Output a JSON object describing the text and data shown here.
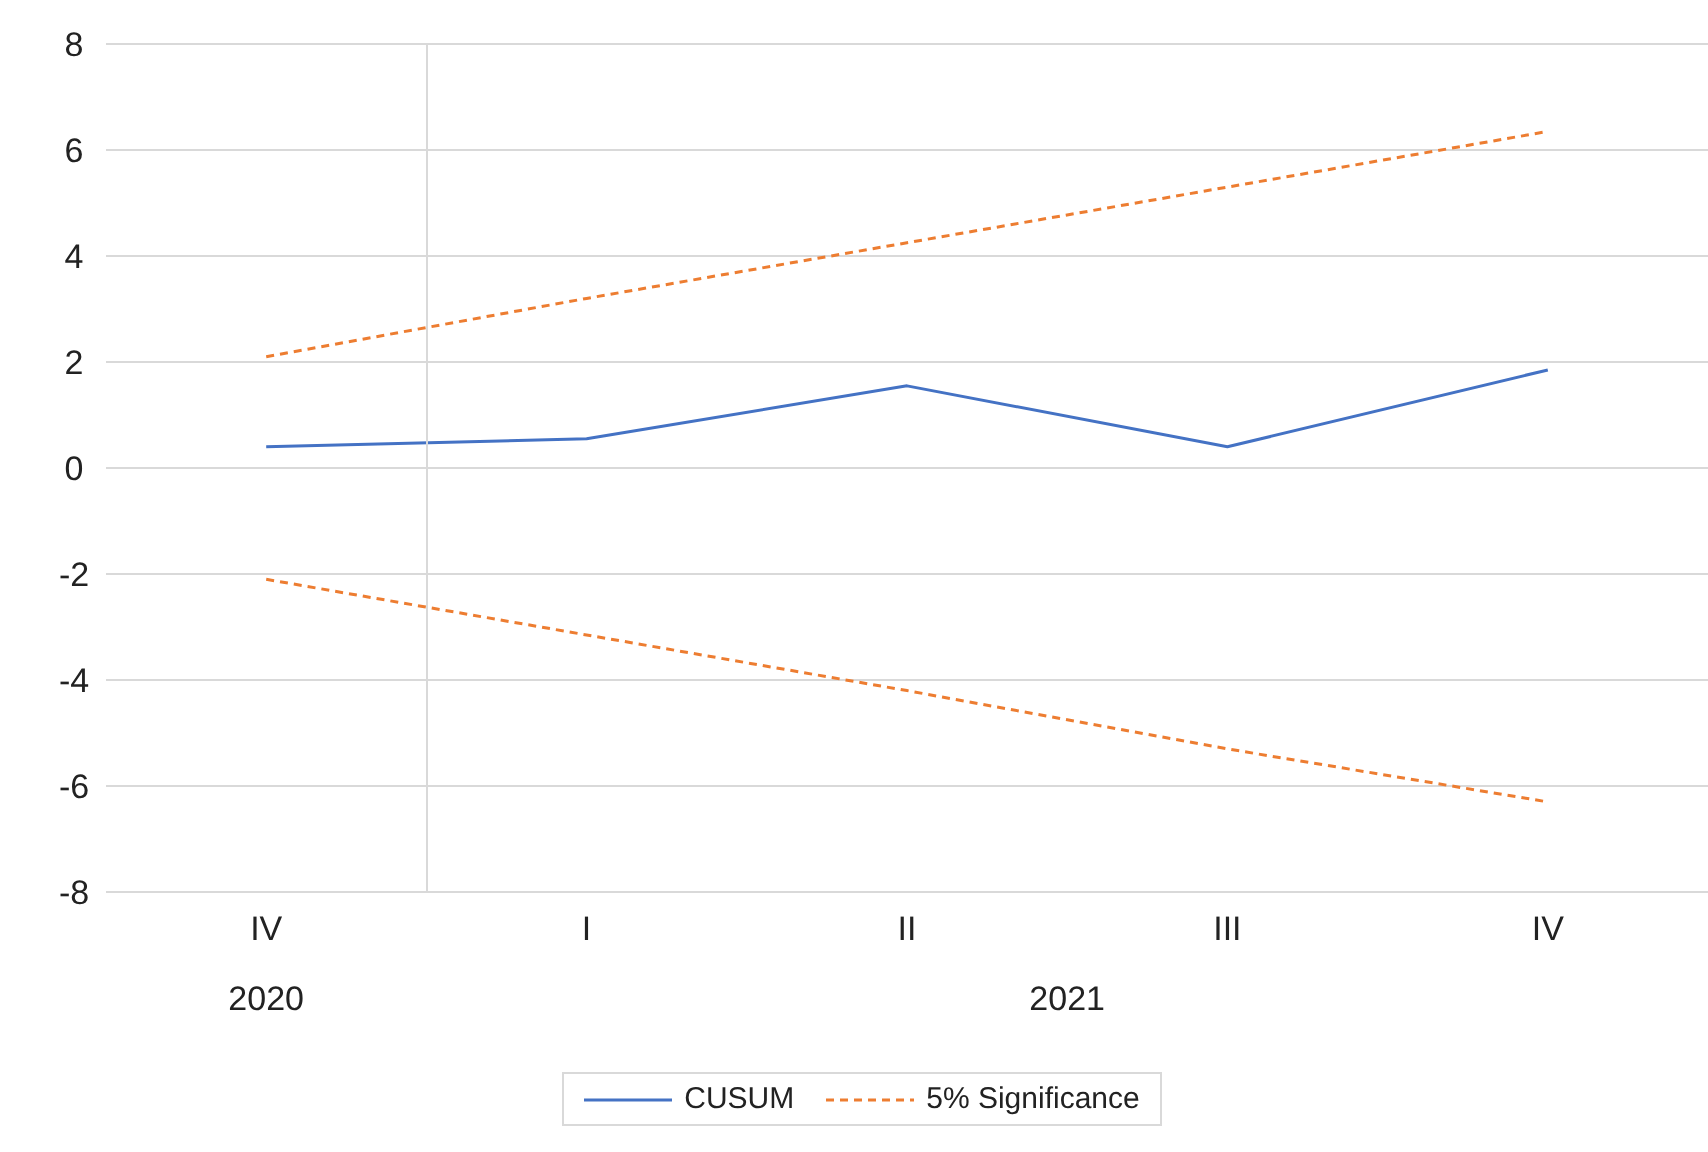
{
  "chart_data": {
    "type": "line",
    "categories": [
      "IV",
      "I",
      "II",
      "III",
      "IV"
    ],
    "series": [
      {
        "name": "CUSUM",
        "color": "#4472c4",
        "values": [
          0.4,
          0.55,
          1.55,
          0.4,
          1.85
        ],
        "line_style": "solid"
      },
      {
        "name": "5% Significance",
        "color": "#ed7d31",
        "values": [
          2.1,
          3.2,
          4.25,
          5.3,
          6.35
        ],
        "line_style": "dashed"
      },
      {
        "color": "#ed7d31",
        "values": [
          -2.1,
          -3.15,
          -4.2,
          -5.3,
          -6.3
        ],
        "line_style": "dashed"
      }
    ],
    "ylim": [
      -8,
      8
    ],
    "yticks": [
      -8,
      -6,
      -4,
      -2,
      0,
      2,
      4,
      6,
      8
    ],
    "grid": "y",
    "legend": "bottom",
    "marker": "none",
    "annotations": [
      "2020",
      "2021"
    ]
  }
}
